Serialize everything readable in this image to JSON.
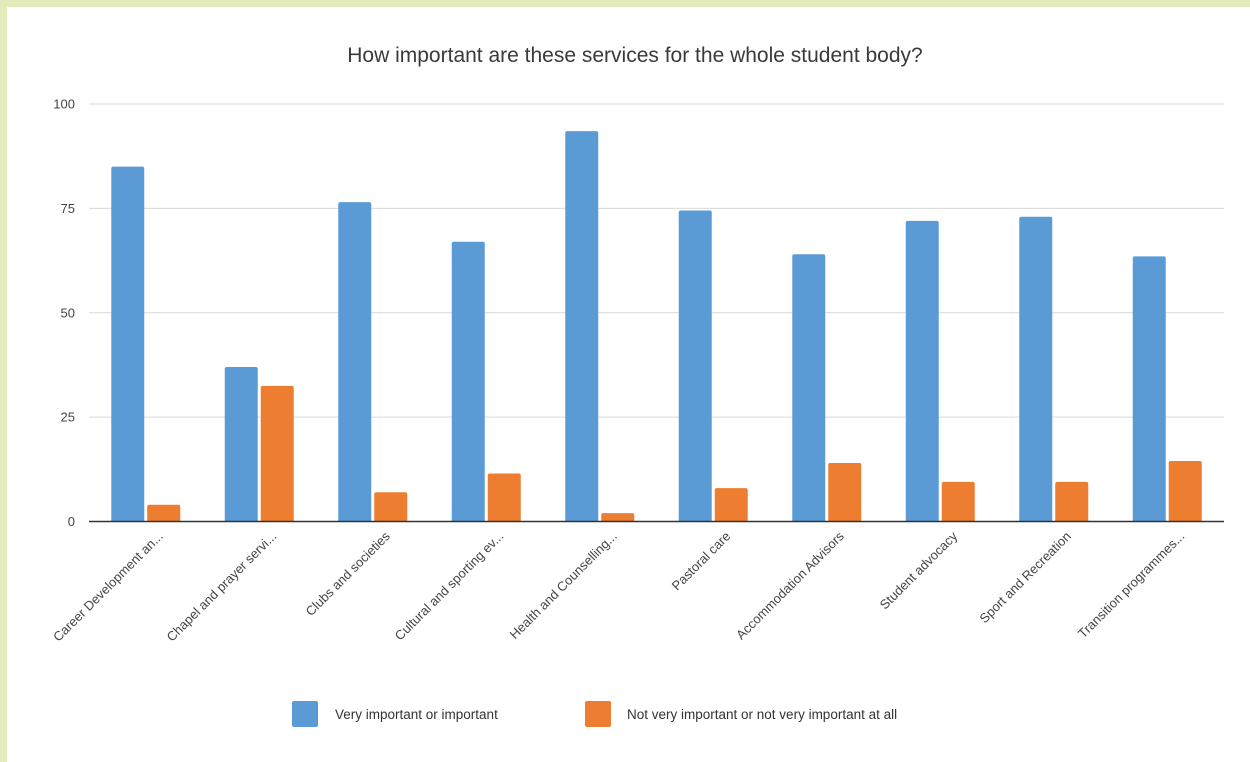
{
  "chart_data": {
    "type": "bar",
    "title": "How important are these services for the whole student body?",
    "xlabel": "",
    "ylabel": "",
    "ylim": [
      0,
      100
    ],
    "yticks": [
      0,
      25,
      50,
      75,
      100
    ],
    "grid": true,
    "legend_position": "bottom",
    "categories": [
      "Career Development an...",
      "Chapel and prayer servi...",
      "Clubs and societies",
      "Cultural and sporting ev...",
      "Health and Counselling...",
      "Pastoral care",
      "Accommodation Advisors",
      "Student advocacy",
      "Sport and Recreation",
      "Transition programmes..."
    ],
    "series": [
      {
        "name": "Very important or important",
        "color": "#5b9bd5",
        "values": [
          85,
          37,
          76.5,
          67,
          93.5,
          74.5,
          64,
          72,
          73,
          63.5
        ]
      },
      {
        "name": "Not very important or not very important at all",
        "color": "#ed7d31",
        "values": [
          4,
          32.5,
          7,
          11.5,
          2,
          8,
          14,
          9.5,
          9.5,
          14.5
        ]
      }
    ]
  }
}
